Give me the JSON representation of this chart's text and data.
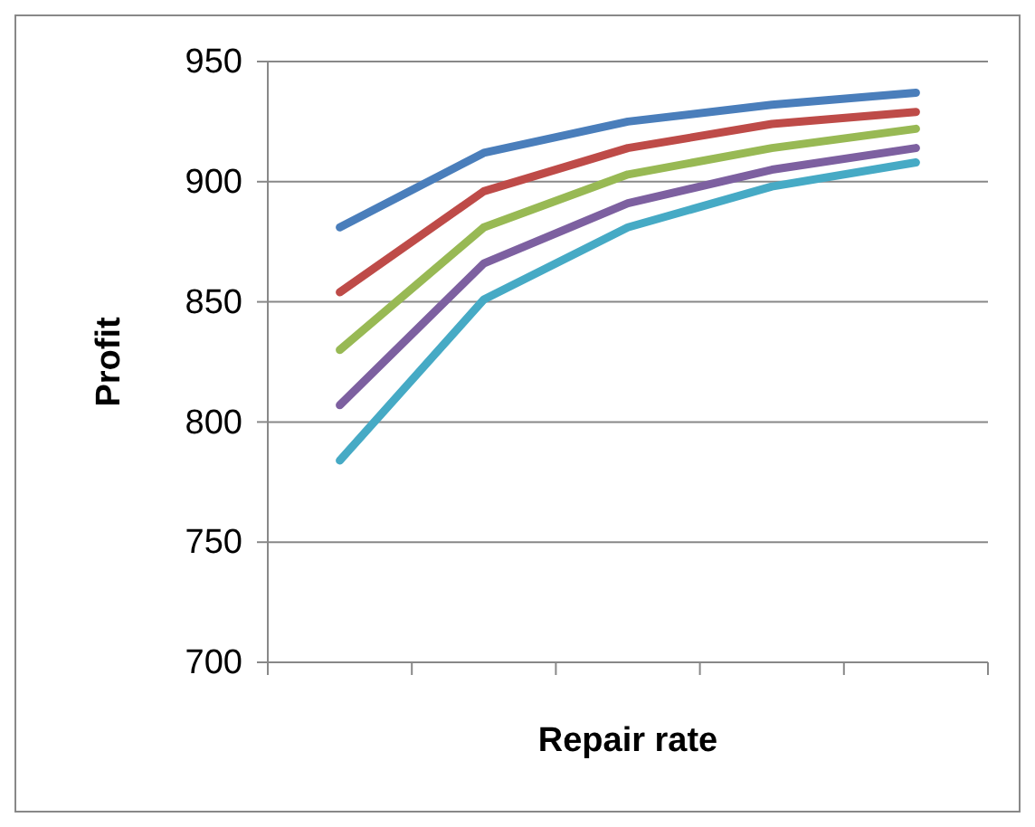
{
  "chart_data": {
    "type": "line",
    "xlabel": "Repair rate",
    "ylabel": "Profit",
    "categories": [
      null,
      null,
      null,
      null,
      null
    ],
    "series": [
      {
        "color": "#4a7ebb",
        "values": [
          881,
          912,
          925,
          932,
          937
        ]
      },
      {
        "color": "#be4b48",
        "values": [
          854,
          896,
          914,
          924,
          929
        ]
      },
      {
        "color": "#98b954",
        "values": [
          830,
          881,
          903,
          914,
          922
        ]
      },
      {
        "color": "#7d60a0",
        "values": [
          807,
          866,
          891,
          905,
          914
        ]
      },
      {
        "color": "#46aac5",
        "values": [
          784,
          851,
          881,
          898,
          908
        ]
      }
    ],
    "ylim": [
      700,
      950
    ],
    "yticks": [
      700,
      750,
      800,
      850,
      900,
      950
    ],
    "grid": "y",
    "marker": "none",
    "line_style": "solid"
  }
}
